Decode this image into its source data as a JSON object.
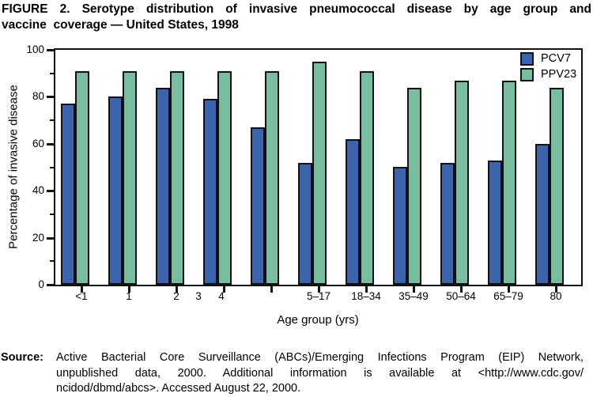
{
  "figure": {
    "title_lines": [
      "FIGURE 2. Serotype distribution of invasive pneumococcal disease by age group and",
      "vaccine  coverage — United States, 1998"
    ],
    "source_label": "Source:",
    "source_lines": [
      "Active Bacterial Core Surveillance (ABCs)/Emerging Infections Program (EIP) Network,",
      "unpublished data, 2000. Additional information is available at <http://www.cdc.gov/",
      "ncidod/dbmd/abcs>. Accessed August 22, 2000."
    ]
  },
  "chart_data": {
    "type": "bar",
    "title": "FIGURE 2. Serotype distribution of invasive pneumococcal disease by age group and vaccine coverage — United States, 1998",
    "categories": [
      "<1",
      "1",
      "2",
      "3",
      "4",
      "5–17",
      "18–34",
      "35–49",
      "50–64",
      "65–79",
      "80"
    ],
    "series": [
      {
        "name": "PCV7",
        "color": "#3c63ab",
        "values": [
          77,
          80,
          84,
          79,
          67,
          52,
          62,
          50,
          52,
          53,
          60
        ]
      },
      {
        "name": "PPV23",
        "color": "#7abca0",
        "values": [
          91,
          91,
          91,
          91,
          91,
          95,
          91,
          84,
          87,
          87,
          84
        ]
      }
    ],
    "xlabel": "Age group (yrs)",
    "ylabel": "Percentage of invasive disease",
    "ylim": [
      0,
      100
    ],
    "yticks": [
      0,
      20,
      40,
      60,
      80,
      100
    ],
    "minor_yticks": [
      10,
      30,
      50,
      70,
      90
    ],
    "grid": false,
    "legend_position": "top-right",
    "bar_outline": "#111111"
  }
}
